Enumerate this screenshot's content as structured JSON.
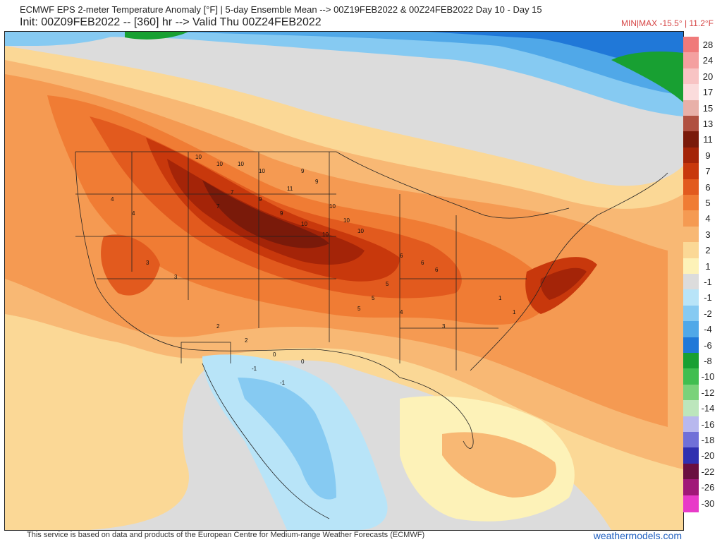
{
  "header": {
    "title": "ECMWF EPS 2-meter Temperature Anomaly [°F] | 5-day Ensemble Mean --> 00Z19FEB2022 & 00Z24FEB2022   Day 10 - Day 15",
    "init_line": "Init: 00Z09FEB2022 -- [360] hr --> Valid Thu 00Z24FEB2022",
    "minmax": "MIN|MAX -15.5° | 11.2°F"
  },
  "colorbar": {
    "levels": [
      {
        "label": "28",
        "color": "#f07a7a"
      },
      {
        "label": "24",
        "color": "#f4a0a0"
      },
      {
        "label": "20",
        "color": "#f8c4c4"
      },
      {
        "label": "17",
        "color": "#fbdcdc"
      },
      {
        "label": "15",
        "color": "#e8b0a8"
      },
      {
        "label": "13",
        "color": "#b05040"
      },
      {
        "label": "11",
        "color": "#7a1a0a"
      },
      {
        "label": "9",
        "color": "#a42408"
      },
      {
        "label": "7",
        "color": "#c8380c"
      },
      {
        "label": "6",
        "color": "#e25a1e"
      },
      {
        "label": "5",
        "color": "#f07c34"
      },
      {
        "label": "4",
        "color": "#f59a52"
      },
      {
        "label": "3",
        "color": "#f8b874"
      },
      {
        "label": "2",
        "color": "#fbd896"
      },
      {
        "label": "1",
        "color": "#fdf2b8"
      },
      {
        "label": "-1",
        "color": "#dcdcdc"
      },
      {
        "label": "-1",
        "color": "#b8e4f8"
      },
      {
        "label": "-2",
        "color": "#86caf2"
      },
      {
        "label": "-4",
        "color": "#50a8e8"
      },
      {
        "label": "-6",
        "color": "#2078d8"
      },
      {
        "label": "-8",
        "color": "#18a032"
      },
      {
        "label": "-10",
        "color": "#40be50"
      },
      {
        "label": "-12",
        "color": "#7ad27a"
      },
      {
        "label": "-14",
        "color": "#bce6bc"
      },
      {
        "label": "-16",
        "color": "#b8b8ee"
      },
      {
        "label": "-18",
        "color": "#7070d8"
      },
      {
        "label": "-20",
        "color": "#3030b0"
      },
      {
        "label": "-22",
        "color": "#6a1040"
      },
      {
        "label": "-26",
        "color": "#a01878"
      },
      {
        "label": "-30",
        "color": "#e83ac8"
      }
    ]
  },
  "map": {
    "anomaly_labels": [
      "10",
      "10",
      "10",
      "10",
      "11",
      "9",
      "9",
      "10",
      "10",
      "10",
      "10",
      "10",
      "9",
      "9",
      "7",
      "7",
      "6",
      "6",
      "6",
      "5",
      "5",
      "5",
      "4",
      "4",
      "4",
      "3",
      "3",
      "3",
      "2",
      "2",
      "1",
      "1",
      "0",
      "0",
      "-1",
      "-1"
    ]
  },
  "footer": {
    "attribution": "This service is based on data and products of the European Centre for Medium-range Weather Forecasts (ECMWF)",
    "site": "weathermodels.com"
  }
}
